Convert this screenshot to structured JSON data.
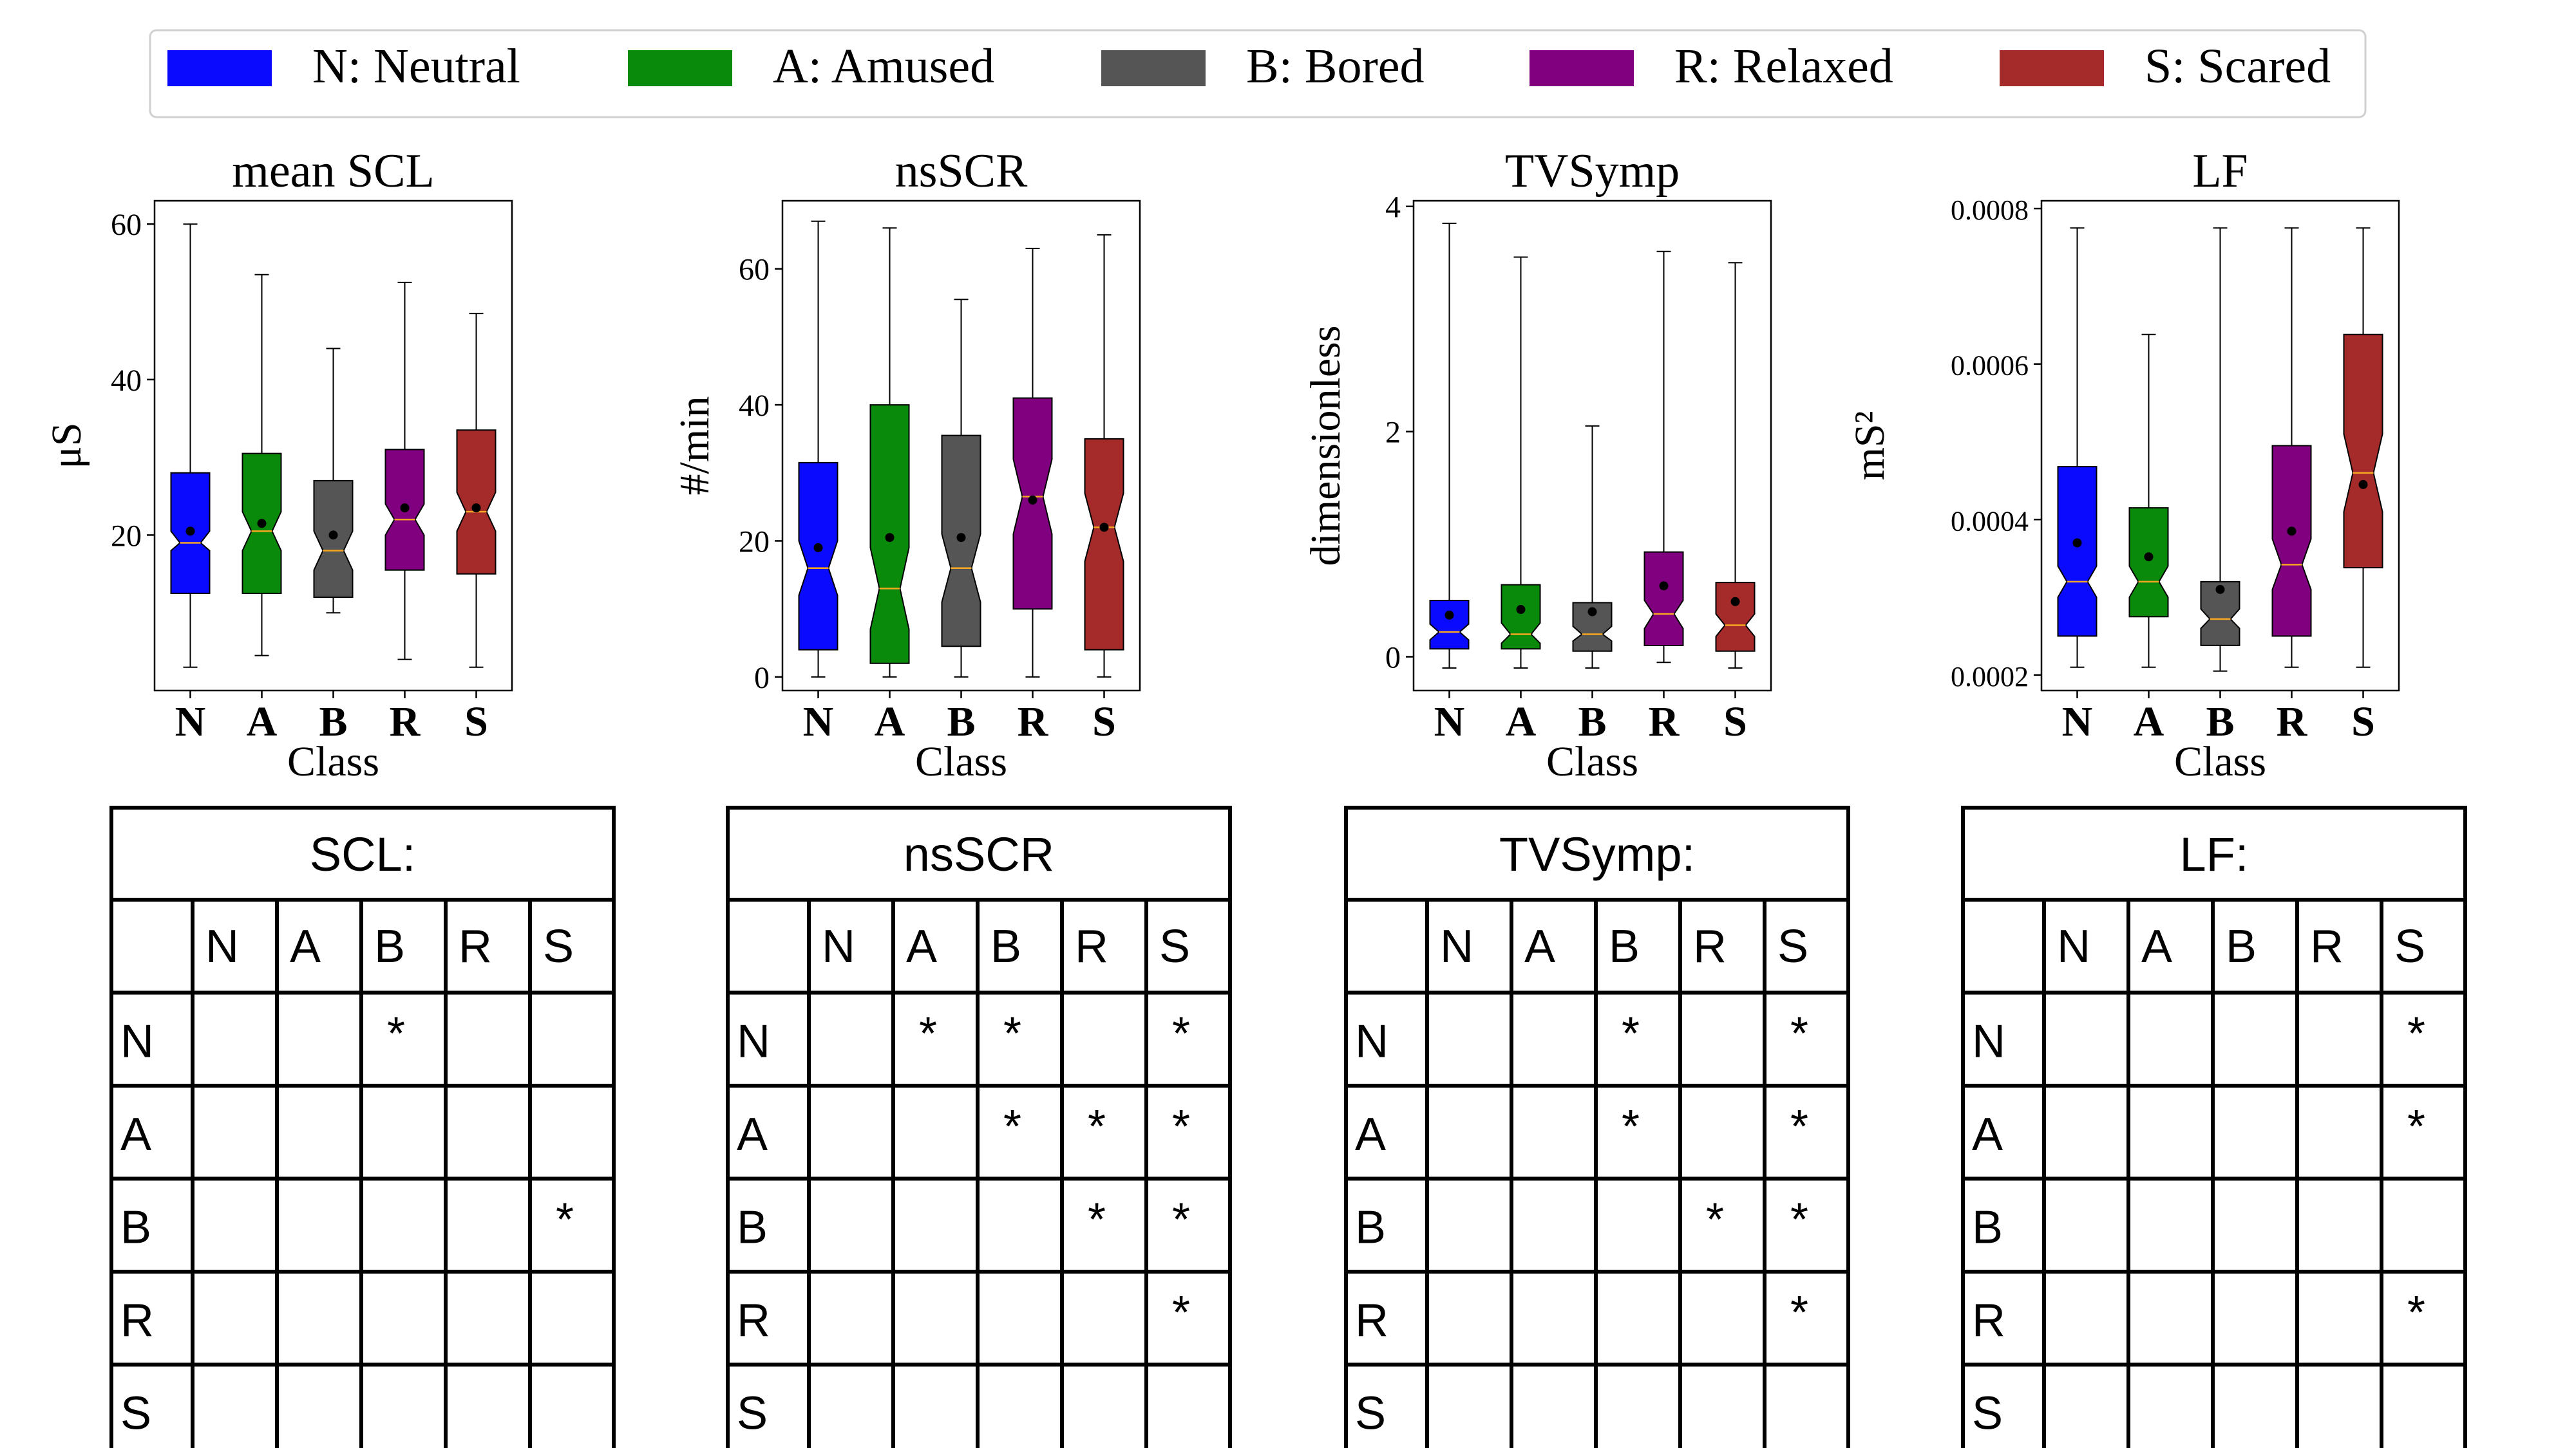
{
  "legend": [
    {
      "label": "N: Neutral",
      "color": "#0a0aff"
    },
    {
      "label": "A: Amused",
      "color": "#0a8a0a"
    },
    {
      "label": "B: Bored",
      "color": "#555555"
    },
    {
      "label": "R: Relaxed",
      "color": "#800080"
    },
    {
      "label": "S: Scared",
      "color": "#a52a2a"
    }
  ],
  "chart_data": [
    {
      "type": "box",
      "title": "mean SCL",
      "xlabel": "Class",
      "ylabel": "μS",
      "categories": [
        "N",
        "A",
        "B",
        "R",
        "S"
      ],
      "ylim": [
        0,
        63
      ],
      "yticks": [
        20,
        40,
        60
      ],
      "ytick_labels": [
        "20",
        "40",
        "60"
      ],
      "boxes": [
        {
          "whislo": 3,
          "q1": 12.5,
          "med": 19,
          "q3": 28,
          "whishi": 60,
          "mean": 20.5,
          "cilo": 18,
          "cihi": 20.5
        },
        {
          "whislo": 4.5,
          "q1": 12.5,
          "med": 20.5,
          "q3": 30.5,
          "whishi": 53.5,
          "mean": 21.5,
          "cilo": 18,
          "cihi": 23
        },
        {
          "whislo": 10,
          "q1": 12,
          "med": 18,
          "q3": 27,
          "whishi": 44,
          "mean": 20,
          "cilo": 15.5,
          "cihi": 20.5
        },
        {
          "whislo": 4,
          "q1": 15.5,
          "med": 22,
          "q3": 31,
          "whishi": 52.5,
          "mean": 23.5,
          "cilo": 20,
          "cihi": 24
        },
        {
          "whislo": 3,
          "q1": 15,
          "med": 23,
          "q3": 33.5,
          "whishi": 48.5,
          "mean": 23.5,
          "cilo": 20.5,
          "cihi": 25.5
        }
      ]
    },
    {
      "type": "box",
      "title": "nsSCR",
      "xlabel": "Class",
      "ylabel": "#/min",
      "categories": [
        "N",
        "A",
        "B",
        "R",
        "S"
      ],
      "ylim": [
        -2,
        70
      ],
      "yticks": [
        0,
        20,
        40,
        60
      ],
      "ytick_labels": [
        "0",
        "20",
        "40",
        "60"
      ],
      "boxes": [
        {
          "whislo": 0,
          "q1": 4,
          "med": 16,
          "q3": 31.5,
          "whishi": 67,
          "mean": 19,
          "cilo": 12,
          "cihi": 20
        },
        {
          "whislo": 0,
          "q1": 2,
          "med": 13,
          "q3": 40,
          "whishi": 66,
          "mean": 20.5,
          "cilo": 7,
          "cihi": 19
        },
        {
          "whislo": 0,
          "q1": 4.5,
          "med": 16,
          "q3": 35.5,
          "whishi": 55.5,
          "mean": 20.5,
          "cilo": 11,
          "cihi": 21
        },
        {
          "whislo": 0,
          "q1": 10,
          "med": 26.5,
          "q3": 41,
          "whishi": 63,
          "mean": 26,
          "cilo": 21,
          "cihi": 32
        },
        {
          "whislo": 0,
          "q1": 4,
          "med": 22,
          "q3": 35,
          "whishi": 65,
          "mean": 22,
          "cilo": 17,
          "cihi": 27
        }
      ]
    },
    {
      "type": "box",
      "title": "TVSymp",
      "xlabel": "Class",
      "ylabel": "dimensionless",
      "categories": [
        "N",
        "A",
        "B",
        "R",
        "S"
      ],
      "ylim": [
        -0.3,
        4.05
      ],
      "yticks": [
        0,
        2,
        4
      ],
      "ytick_labels": [
        "0",
        "2",
        "4"
      ],
      "boxes": [
        {
          "whislo": -0.1,
          "q1": 0.07,
          "med": 0.22,
          "q3": 0.5,
          "whishi": 3.85,
          "mean": 0.37,
          "cilo": 0.15,
          "cihi": 0.29
        },
        {
          "whislo": -0.1,
          "q1": 0.07,
          "med": 0.2,
          "q3": 0.64,
          "whishi": 3.55,
          "mean": 0.42,
          "cilo": 0.12,
          "cihi": 0.3
        },
        {
          "whislo": -0.1,
          "q1": 0.05,
          "med": 0.2,
          "q3": 0.48,
          "whishi": 2.05,
          "mean": 0.4,
          "cilo": 0.14,
          "cihi": 0.27
        },
        {
          "whislo": -0.05,
          "q1": 0.1,
          "med": 0.38,
          "q3": 0.93,
          "whishi": 3.6,
          "mean": 0.63,
          "cilo": 0.25,
          "cihi": 0.5
        },
        {
          "whislo": -0.1,
          "q1": 0.05,
          "med": 0.28,
          "q3": 0.66,
          "whishi": 3.5,
          "mean": 0.49,
          "cilo": 0.18,
          "cihi": 0.38
        }
      ]
    },
    {
      "type": "box",
      "title": "LF",
      "xlabel": "Class",
      "ylabel": "mS²",
      "categories": [
        "N",
        "A",
        "B",
        "R",
        "S"
      ],
      "ylim": [
        0.00018,
        0.00081
      ],
      "yticks": [
        0.0002,
        0.0004,
        0.0006,
        0.0008
      ],
      "ytick_labels": [
        "0.0002",
        "0.0004",
        "0.0006",
        "0.0008"
      ],
      "boxes": [
        {
          "whislo": 0.00021,
          "q1": 0.00025,
          "med": 0.00032,
          "q3": 0.000468,
          "whishi": 0.000775,
          "mean": 0.00037,
          "cilo": 0.0003,
          "cihi": 0.00034
        },
        {
          "whislo": 0.00021,
          "q1": 0.000275,
          "med": 0.00032,
          "q3": 0.000415,
          "whishi": 0.000638,
          "mean": 0.000352,
          "cilo": 0.0003,
          "cihi": 0.00034
        },
        {
          "whislo": 0.000205,
          "q1": 0.000238,
          "med": 0.000272,
          "q3": 0.00032,
          "whishi": 0.000775,
          "mean": 0.00031,
          "cilo": 0.00026,
          "cihi": 0.000285
        },
        {
          "whislo": 0.00021,
          "q1": 0.00025,
          "med": 0.000342,
          "q3": 0.000495,
          "whishi": 0.000775,
          "mean": 0.000385,
          "cilo": 0.00031,
          "cihi": 0.000375
        },
        {
          "whislo": 0.00021,
          "q1": 0.000338,
          "med": 0.00046,
          "q3": 0.000638,
          "whishi": 0.000775,
          "mean": 0.000445,
          "cilo": 0.00041,
          "cihi": 0.00051
        }
      ]
    }
  ],
  "tables": [
    {
      "title": "SCL:",
      "columns": [
        "N",
        "A",
        "B",
        "R",
        "S"
      ],
      "rows": [
        {
          "label": "N",
          "cells": [
            "",
            "",
            "*",
            "",
            ""
          ]
        },
        {
          "label": "A",
          "cells": [
            "",
            "",
            "",
            "",
            ""
          ]
        },
        {
          "label": "B",
          "cells": [
            "",
            "",
            "",
            "",
            "*"
          ]
        },
        {
          "label": "R",
          "cells": [
            "",
            "",
            "",
            "",
            ""
          ]
        },
        {
          "label": "S",
          "cells": [
            "",
            "",
            "",
            "",
            ""
          ]
        }
      ]
    },
    {
      "title": "nsSCR",
      "columns": [
        "N",
        "A",
        "B",
        "R",
        "S"
      ],
      "rows": [
        {
          "label": "N",
          "cells": [
            "",
            "*",
            "*",
            "",
            "*"
          ]
        },
        {
          "label": "A",
          "cells": [
            "",
            "",
            "*",
            "*",
            "*"
          ]
        },
        {
          "label": "B",
          "cells": [
            "",
            "",
            "",
            "*",
            "*"
          ]
        },
        {
          "label": "R",
          "cells": [
            "",
            "",
            "",
            "",
            "*"
          ]
        },
        {
          "label": "S",
          "cells": [
            "",
            "",
            "",
            "",
            ""
          ]
        }
      ]
    },
    {
      "title": "TVSymp:",
      "columns": [
        "N",
        "A",
        "B",
        "R",
        "S"
      ],
      "rows": [
        {
          "label": "N",
          "cells": [
            "",
            "",
            "*",
            "",
            "*"
          ]
        },
        {
          "label": "A",
          "cells": [
            "",
            "",
            "*",
            "",
            "*"
          ]
        },
        {
          "label": "B",
          "cells": [
            "",
            "",
            "",
            "*",
            "*"
          ]
        },
        {
          "label": "R",
          "cells": [
            "",
            "",
            "",
            "",
            "*"
          ]
        },
        {
          "label": "S",
          "cells": [
            "",
            "",
            "",
            "",
            ""
          ]
        }
      ]
    },
    {
      "title": "LF:",
      "columns": [
        "N",
        "A",
        "B",
        "R",
        "S"
      ],
      "rows": [
        {
          "label": "N",
          "cells": [
            "",
            "",
            "",
            "",
            "*"
          ]
        },
        {
          "label": "A",
          "cells": [
            "",
            "",
            "",
            "",
            "*"
          ]
        },
        {
          "label": "B",
          "cells": [
            "",
            "",
            "",
            "",
            ""
          ]
        },
        {
          "label": "R",
          "cells": [
            "",
            "",
            "",
            "",
            "*"
          ]
        },
        {
          "label": "S",
          "cells": [
            "",
            "",
            "",
            "",
            ""
          ]
        }
      ]
    }
  ]
}
